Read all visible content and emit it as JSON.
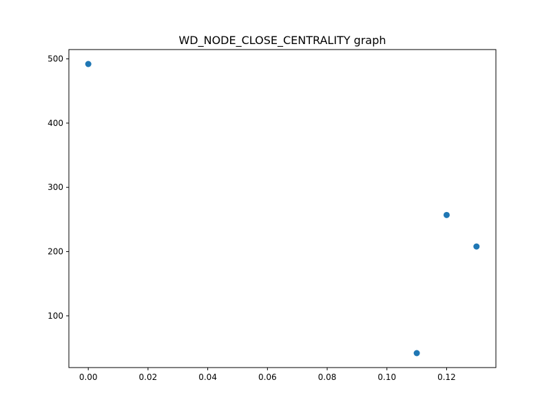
{
  "chart_data": {
    "type": "scatter",
    "title": "WD_NODE_CLOSE_CENTRALITY graph",
    "xlabel": "",
    "ylabel": "",
    "xlim": [
      -0.0065,
      0.1365
    ],
    "ylim": [
      19.5,
      514.5
    ],
    "x_ticks": [
      0.0,
      0.02,
      0.04,
      0.06,
      0.08,
      0.1,
      0.12
    ],
    "x_tick_labels": [
      "0.00",
      "0.02",
      "0.04",
      "0.06",
      "0.08",
      "0.10",
      "0.12"
    ],
    "y_ticks": [
      100,
      200,
      300,
      400,
      500
    ],
    "y_tick_labels": [
      "100",
      "200",
      "300",
      "400",
      "500"
    ],
    "grid": false,
    "legend": "none",
    "marker_color": "#1f77b4",
    "series": [
      {
        "points": [
          {
            "x": 0.0,
            "y": 492
          },
          {
            "x": 0.11,
            "y": 42
          },
          {
            "x": 0.12,
            "y": 257
          },
          {
            "x": 0.13,
            "y": 208
          }
        ]
      }
    ]
  }
}
